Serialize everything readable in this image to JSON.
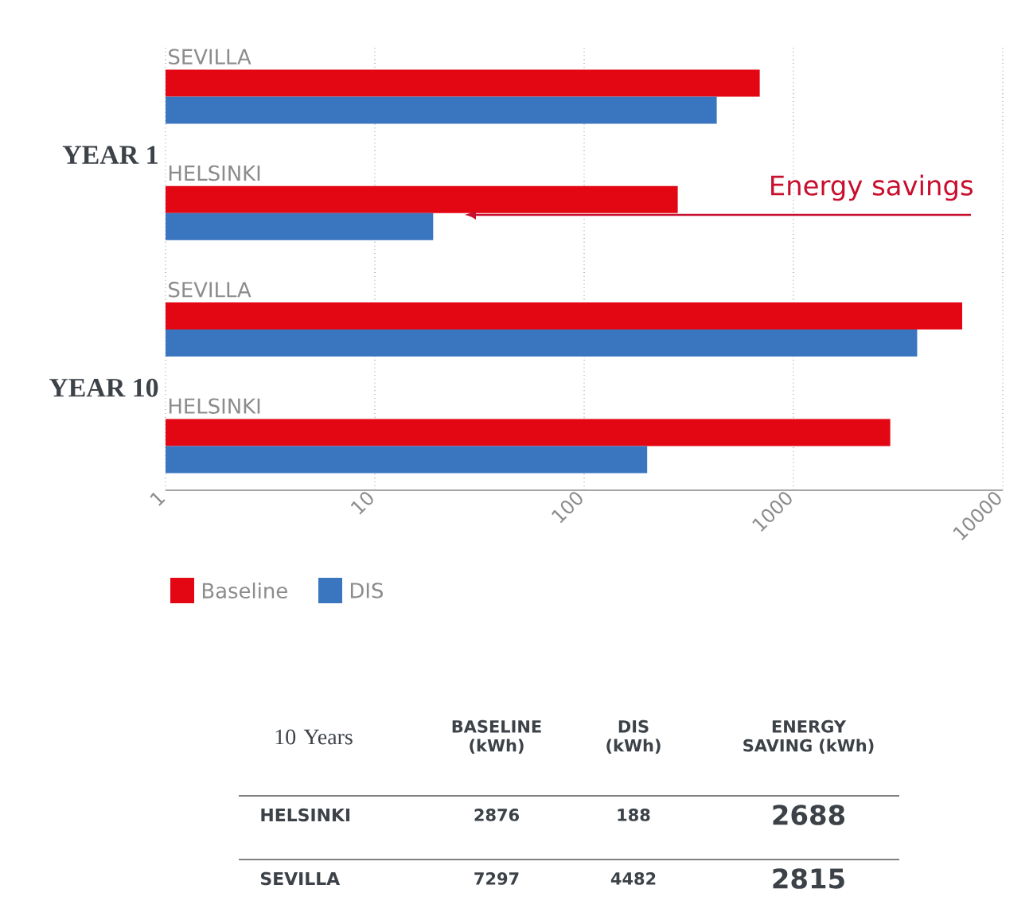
{
  "chart_data": {
    "type": "bar",
    "orientation": "horizontal",
    "log": "x",
    "categories": [
      "SEVILLA",
      "HELSINKI",
      "SEVILLA",
      "HELSINKI"
    ],
    "series": [
      {
        "name": "Baseline",
        "color": "#e30613",
        "values": [
          690,
          280,
          6400,
          2900
        ]
      },
      {
        "name": "DIS",
        "color": "#3a76c0",
        "values": [
          430,
          19,
          3900,
          200
        ]
      }
    ],
    "xlim": [
      1,
      10000
    ],
    "xticks": [
      1,
      10,
      100,
      1000,
      10000
    ],
    "grid": "x",
    "legend": "bottom left",
    "annotations": [
      "YEAR 1",
      "YEAR 10",
      "Energy savings",
      "10 Years",
      "BASELINE (kWh)",
      "DIS (kWh)",
      "ENERGY SAVING (kWh)",
      "HELSINKI",
      "2876",
      "188",
      "2688",
      "SEVILLA",
      "7297",
      "4482",
      "2815"
    ]
  }
}
